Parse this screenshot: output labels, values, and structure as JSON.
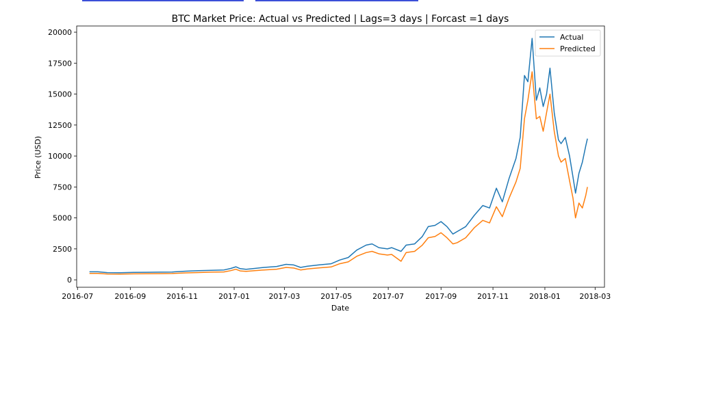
{
  "chart_data": {
    "type": "line",
    "title": "BTC Market Price: Actual vs Predicted | Lags=3 days | Forcast =1 days",
    "xlabel": "Date",
    "ylabel": "Price (USD)",
    "xlim": [
      "2016-06-30",
      "2018-03-12"
    ],
    "ylim": [
      -600,
      20500
    ],
    "yticks": [
      0,
      2500,
      5000,
      7500,
      10000,
      12500,
      15000,
      17500,
      20000
    ],
    "xticks": [
      "2016-07",
      "2016-09",
      "2016-11",
      "2017-01",
      "2017-03",
      "2017-05",
      "2017-07",
      "2017-09",
      "2017-11",
      "2018-01",
      "2018-03"
    ],
    "legend_position": "top-right",
    "grid": false,
    "series": [
      {
        "name": "Actual",
        "color": "#1f77b4",
        "x": [
          "2016-07-15",
          "2016-07-25",
          "2016-08-05",
          "2016-08-20",
          "2016-09-05",
          "2016-09-20",
          "2016-10-05",
          "2016-10-20",
          "2016-11-05",
          "2016-11-20",
          "2016-12-05",
          "2016-12-20",
          "2016-12-28",
          "2017-01-03",
          "2017-01-08",
          "2017-01-15",
          "2017-01-25",
          "2017-02-05",
          "2017-02-20",
          "2017-03-03",
          "2017-03-12",
          "2017-03-20",
          "2017-03-28",
          "2017-04-10",
          "2017-04-25",
          "2017-05-05",
          "2017-05-15",
          "2017-05-25",
          "2017-06-05",
          "2017-06-12",
          "2017-06-20",
          "2017-06-30",
          "2017-07-05",
          "2017-07-16",
          "2017-07-22",
          "2017-08-01",
          "2017-08-10",
          "2017-08-17",
          "2017-08-25",
          "2017-09-01",
          "2017-09-08",
          "2017-09-15",
          "2017-09-20",
          "2017-09-30",
          "2017-10-10",
          "2017-10-20",
          "2017-10-28",
          "2017-11-05",
          "2017-11-12",
          "2017-11-20",
          "2017-11-28",
          "2017-12-03",
          "2017-12-08",
          "2017-12-12",
          "2017-12-17",
          "2017-12-22",
          "2017-12-26",
          "2017-12-30",
          "2018-01-03",
          "2018-01-07",
          "2018-01-12",
          "2018-01-17",
          "2018-01-20",
          "2018-01-25",
          "2018-01-30",
          "2018-02-03",
          "2018-02-06",
          "2018-02-10",
          "2018-02-14",
          "2018-02-18",
          "2018-02-20"
        ],
        "values": [
          650,
          650,
          580,
          570,
          600,
          610,
          620,
          630,
          700,
          740,
          770,
          800,
          920,
          1050,
          900,
          850,
          920,
          1000,
          1080,
          1250,
          1200,
          1000,
          1100,
          1200,
          1300,
          1600,
          1800,
          2400,
          2800,
          2900,
          2600,
          2500,
          2600,
          2300,
          2800,
          2900,
          3500,
          4300,
          4400,
          4700,
          4300,
          3700,
          3900,
          4300,
          5200,
          6000,
          5800,
          7400,
          6300,
          8200,
          9800,
          11500,
          16500,
          16000,
          19500,
          14500,
          15500,
          14000,
          15000,
          17100,
          13500,
          11300,
          11000,
          11500,
          10000,
          8300,
          7000,
          8600,
          9500,
          10800,
          11400
        ]
      },
      {
        "name": "Predicted",
        "color": "#ff7f0e",
        "x": [
          "2016-07-15",
          "2016-07-25",
          "2016-08-05",
          "2016-08-20",
          "2016-09-05",
          "2016-09-20",
          "2016-10-05",
          "2016-10-20",
          "2016-11-05",
          "2016-11-20",
          "2016-12-05",
          "2016-12-20",
          "2016-12-28",
          "2017-01-03",
          "2017-01-08",
          "2017-01-15",
          "2017-01-25",
          "2017-02-05",
          "2017-02-20",
          "2017-03-03",
          "2017-03-12",
          "2017-03-20",
          "2017-03-28",
          "2017-04-10",
          "2017-04-25",
          "2017-05-05",
          "2017-05-15",
          "2017-05-25",
          "2017-06-05",
          "2017-06-12",
          "2017-06-20",
          "2017-06-30",
          "2017-07-05",
          "2017-07-16",
          "2017-07-22",
          "2017-08-01",
          "2017-08-10",
          "2017-08-17",
          "2017-08-25",
          "2017-09-01",
          "2017-09-08",
          "2017-09-15",
          "2017-09-20",
          "2017-09-30",
          "2017-10-10",
          "2017-10-20",
          "2017-10-28",
          "2017-11-05",
          "2017-11-12",
          "2017-11-20",
          "2017-11-28",
          "2017-12-03",
          "2017-12-08",
          "2017-12-12",
          "2017-12-17",
          "2017-12-22",
          "2017-12-26",
          "2017-12-30",
          "2018-01-03",
          "2018-01-07",
          "2018-01-12",
          "2018-01-17",
          "2018-01-20",
          "2018-01-25",
          "2018-01-30",
          "2018-02-03",
          "2018-02-06",
          "2018-02-10",
          "2018-02-14",
          "2018-02-18",
          "2018-02-20"
        ],
        "values": [
          520,
          520,
          470,
          460,
          480,
          490,
          500,
          510,
          560,
          590,
          620,
          640,
          740,
          850,
          720,
          680,
          740,
          800,
          860,
          1000,
          950,
          800,
          880,
          960,
          1040,
          1300,
          1450,
          1900,
          2200,
          2300,
          2100,
          2000,
          2050,
          1500,
          2200,
          2300,
          2800,
          3400,
          3500,
          3800,
          3400,
          2900,
          3000,
          3400,
          4200,
          4800,
          4600,
          5900,
          5100,
          6600,
          7900,
          9000,
          13000,
          14500,
          16800,
          13000,
          13200,
          12000,
          13500,
          15000,
          12000,
          10000,
          9500,
          9800,
          8000,
          6600,
          5000,
          6200,
          5800,
          6800,
          7500
        ]
      }
    ]
  }
}
